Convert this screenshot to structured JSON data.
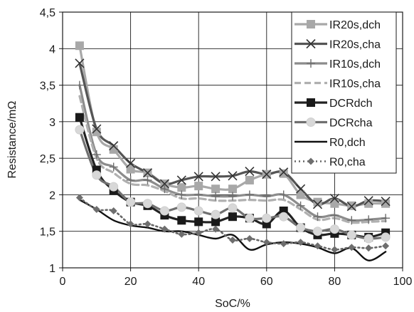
{
  "chart_data": {
    "type": "line",
    "title": "",
    "xlabel": "SoC/%",
    "ylabel": "Resistance/mΩ",
    "xlim": [
      0,
      100
    ],
    "ylim": [
      1,
      4.5
    ],
    "xticks": [
      0,
      20,
      40,
      60,
      80,
      100
    ],
    "yticks": [
      1,
      1.5,
      2,
      2.5,
      3,
      3.5,
      4,
      4.5
    ],
    "xtick_labels": [
      "0",
      "20",
      "40",
      "60",
      "80",
      "100"
    ],
    "ytick_labels": [
      "1",
      "1,5",
      "2",
      "2,5",
      "3",
      "3,5",
      "4",
      "4,5"
    ],
    "grid": true,
    "legend_position": "top-right",
    "x": [
      5,
      10,
      15,
      20,
      25,
      30,
      35,
      40,
      45,
      50,
      55,
      60,
      65,
      70,
      75,
      80,
      85,
      90,
      95
    ],
    "series": [
      {
        "name": "IR20s,dch",
        "color": "#a8a8a8",
        "linestyle": "solid",
        "marker": "square-filled",
        "values": [
          4.04,
          2.86,
          2.62,
          2.35,
          2.3,
          2.15,
          2.1,
          2.12,
          2.08,
          2.08,
          2.2,
          2.28,
          2.29,
          2.0,
          1.9,
          1.88,
          1.85,
          1.88,
          1.88
        ]
      },
      {
        "name": "IR20s,cha",
        "color": "#555555",
        "linestyle": "solid",
        "marker": "x",
        "values": [
          3.8,
          2.9,
          2.67,
          2.43,
          2.3,
          2.15,
          2.2,
          2.25,
          2.25,
          2.26,
          2.32,
          2.28,
          2.31,
          2.08,
          1.87,
          1.95,
          1.84,
          1.92,
          1.91
        ]
      },
      {
        "name": "IR10s,dch",
        "color": "#8c8c8c",
        "linestyle": "solid",
        "marker": "plus",
        "values": [
          3.5,
          2.55,
          2.38,
          2.2,
          2.2,
          2.08,
          2.0,
          2.0,
          1.98,
          1.98,
          2.0,
          1.98,
          2.0,
          1.85,
          1.7,
          1.72,
          1.65,
          1.66,
          1.68
        ]
      },
      {
        "name": "IR10s,cha",
        "color": "#b0b0b0",
        "linestyle": "dashed",
        "marker": "none",
        "values": [
          3.35,
          2.5,
          2.3,
          2.15,
          2.13,
          2.05,
          1.95,
          1.95,
          1.92,
          1.92,
          1.93,
          1.92,
          1.93,
          1.8,
          1.66,
          1.68,
          1.62,
          1.63,
          1.64
        ]
      },
      {
        "name": "DCRdch",
        "color": "#222222",
        "linestyle": "solid",
        "marker": "square-black",
        "values": [
          3.06,
          2.34,
          2.06,
          1.9,
          1.85,
          1.72,
          1.65,
          1.63,
          1.63,
          1.7,
          1.68,
          1.6,
          1.78,
          1.55,
          1.45,
          1.47,
          1.45,
          1.42,
          1.48
        ]
      },
      {
        "name": "DCRcha",
        "color": "#707070",
        "linestyle": "solid",
        "marker": "circle-light",
        "values": [
          2.89,
          2.27,
          2.11,
          1.9,
          1.88,
          1.78,
          1.83,
          1.78,
          1.73,
          1.82,
          1.68,
          1.68,
          1.7,
          1.55,
          1.5,
          1.53,
          1.45,
          1.4,
          1.42
        ]
      },
      {
        "name": "R0,dch",
        "color": "#111111",
        "linestyle": "solid",
        "marker": "none",
        "values": [
          1.93,
          1.8,
          1.65,
          1.58,
          1.55,
          1.5,
          1.5,
          1.45,
          1.4,
          1.45,
          1.25,
          1.32,
          1.35,
          1.33,
          1.28,
          1.2,
          1.27,
          1.1,
          1.22
        ]
      },
      {
        "name": "R0,cha",
        "color": "#666666",
        "linestyle": "dotted",
        "marker": "diamond",
        "values": [
          1.96,
          1.8,
          1.78,
          1.6,
          1.6,
          1.53,
          1.46,
          1.48,
          1.53,
          1.38,
          1.4,
          1.35,
          1.33,
          1.35,
          1.3,
          1.25,
          1.28,
          1.27,
          1.3
        ]
      }
    ]
  }
}
